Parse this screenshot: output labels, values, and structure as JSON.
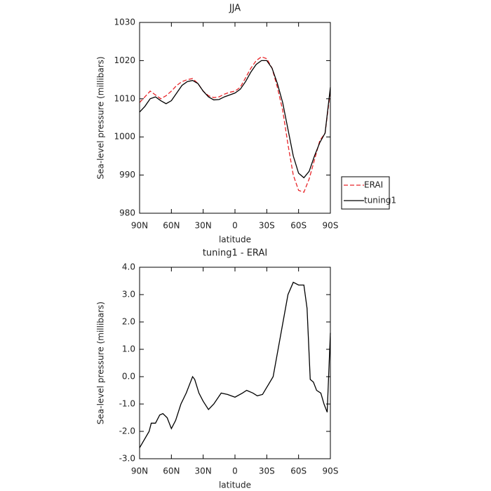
{
  "chart_data": [
    {
      "type": "line",
      "title": "JJA",
      "xlabel": "latitude",
      "ylabel": "Sea-level pressure (millibars)",
      "x": [
        90,
        85,
        80,
        75,
        70,
        65,
        60,
        55,
        50,
        45,
        40,
        35,
        30,
        25,
        20,
        15,
        10,
        5,
        0,
        -5,
        -10,
        -15,
        -20,
        -25,
        -30,
        -35,
        -40,
        -45,
        -50,
        -55,
        -60,
        -65,
        -70,
        -75,
        -80,
        -85,
        -90
      ],
      "series": [
        {
          "name": "ERAI",
          "color": "#e8262a",
          "dash": true,
          "values": [
            1009,
            1010.5,
            1012,
            1011,
            1010,
            1010.8,
            1012,
            1013.5,
            1014.5,
            1015,
            1015.3,
            1014,
            1012,
            1010.8,
            1010.3,
            1010.5,
            1011.2,
            1011.7,
            1012,
            1013,
            1015.5,
            1018,
            1020,
            1021,
            1020.5,
            1018,
            1013,
            1007,
            998,
            990,
            986,
            985.5,
            989,
            994,
            999,
            1001,
            1012
          ]
        },
        {
          "name": "tuning1",
          "color": "#000000",
          "dash": false,
          "values": [
            1006.5,
            1008,
            1010,
            1010.5,
            1009.5,
            1008.7,
            1009.5,
            1011.5,
            1013.5,
            1014.5,
            1014.8,
            1014,
            1012,
            1010.5,
            1009.7,
            1009.8,
            1010.5,
            1011,
            1011.5,
            1012.5,
            1014.5,
            1017,
            1019,
            1020,
            1020,
            1018,
            1014,
            1009,
            1002,
            995,
            990.5,
            989.3,
            991,
            995,
            998.5,
            1001,
            1013
          ]
        }
      ],
      "xlim": [
        90,
        -90
      ],
      "xticks": [
        {
          "value": 90,
          "label": "90N"
        },
        {
          "value": 60,
          "label": "60N"
        },
        {
          "value": 30,
          "label": "30N"
        },
        0,
        {
          "value": -30,
          "label": "30S"
        },
        {
          "value": -60,
          "label": "60S"
        },
        {
          "value": -90,
          "label": "90S"
        }
      ],
      "ylim": [
        980,
        1030
      ],
      "yticks": [
        980,
        990,
        1000,
        1010,
        1020,
        1030
      ],
      "legend": "right"
    },
    {
      "type": "line",
      "title": "tuning1 - ERAI",
      "xlabel": "latitude",
      "ylabel": "Sea-level pressure (millibars)",
      "x": [
        90,
        81,
        79,
        75,
        71,
        68,
        64,
        60,
        56,
        51,
        46,
        42,
        40,
        38,
        34,
        30,
        25,
        20,
        13,
        7,
        0,
        -7,
        -11,
        -17,
        -21,
        -26,
        -36,
        -43,
        -50,
        -55,
        -60,
        -65,
        -68,
        -71,
        -74,
        -77,
        -81,
        -84,
        -87,
        -90
      ],
      "series": [
        {
          "name": "tuning1 - ERAI",
          "color": "#000000",
          "dash": false,
          "values": [
            -2.6,
            -2.0,
            -1.7,
            -1.7,
            -1.4,
            -1.35,
            -1.5,
            -1.9,
            -1.6,
            -1.0,
            -0.6,
            -0.2,
            0,
            -0.1,
            -0.6,
            -0.9,
            -1.2,
            -1.0,
            -0.6,
            -0.65,
            -0.75,
            -0.6,
            -0.5,
            -0.6,
            -0.7,
            -0.65,
            0,
            1.5,
            3.0,
            3.45,
            3.35,
            3.35,
            2.5,
            -0.1,
            -0.2,
            -0.5,
            -0.6,
            -1.0,
            -1.3,
            1.6
          ]
        }
      ],
      "xlim": [
        90,
        -90
      ],
      "xticks": [
        {
          "value": 90,
          "label": "90N"
        },
        {
          "value": 60,
          "label": "60N"
        },
        {
          "value": 30,
          "label": "30N"
        },
        0,
        {
          "value": -30,
          "label": "30S"
        },
        {
          "value": -60,
          "label": "60S"
        },
        {
          "value": -90,
          "label": "90S"
        }
      ],
      "ylim": [
        -3,
        4
      ],
      "yticks": [
        {
          "value": -3,
          "label": "-3.0"
        },
        {
          "value": -2,
          "label": "-2.0"
        },
        {
          "value": -1,
          "label": "-1.0"
        },
        {
          "value": 0,
          "label": "0.0"
        },
        {
          "value": 1,
          "label": "1.0"
        },
        {
          "value": 2,
          "label": "2.0"
        },
        {
          "value": 3,
          "label": "3.0"
        },
        {
          "value": 4,
          "label": "4.0"
        }
      ]
    }
  ]
}
